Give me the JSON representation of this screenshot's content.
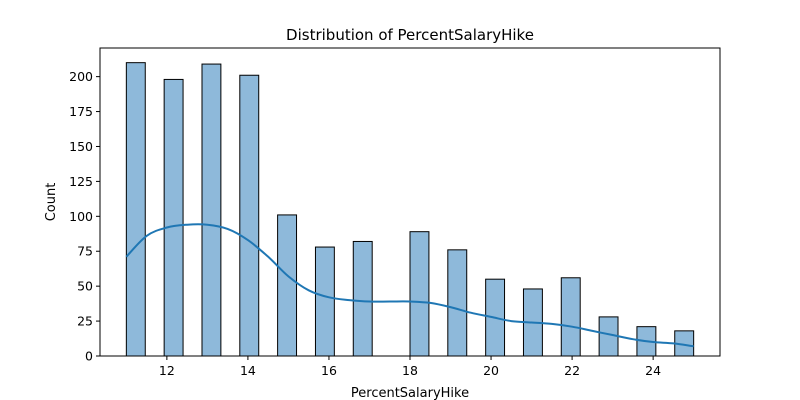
{
  "chart_data": {
    "type": "bar",
    "title": "Distribution of PercentSalaryHike",
    "xlabel": "PercentSalaryHike",
    "ylabel": "Count",
    "xlim": [
      10.35,
      25.65
    ],
    "ylim": [
      0,
      220.5
    ],
    "xticks": [
      12,
      14,
      16,
      18,
      20,
      22,
      24
    ],
    "yticks": [
      0,
      25,
      50,
      75,
      100,
      125,
      150,
      175,
      200
    ],
    "bins": [
      {
        "x0": 11.0,
        "x1": 11.467,
        "count": 210
      },
      {
        "x0": 11.933,
        "x1": 12.4,
        "count": 198
      },
      {
        "x0": 12.867,
        "x1": 13.333,
        "count": 209
      },
      {
        "x0": 13.8,
        "x1": 14.267,
        "count": 201
      },
      {
        "x0": 14.733,
        "x1": 15.2,
        "count": 101
      },
      {
        "x0": 15.667,
        "x1": 16.133,
        "count": 78
      },
      {
        "x0": 16.6,
        "x1": 17.067,
        "count": 82
      },
      {
        "x0": 18.0,
        "x1": 18.467,
        "count": 89
      },
      {
        "x0": 18.933,
        "x1": 19.4,
        "count": 76
      },
      {
        "x0": 19.867,
        "x1": 20.333,
        "count": 55
      },
      {
        "x0": 20.8,
        "x1": 21.267,
        "count": 48
      },
      {
        "x0": 21.733,
        "x1": 22.2,
        "count": 56
      },
      {
        "x0": 22.667,
        "x1": 23.133,
        "count": 28
      },
      {
        "x0": 23.6,
        "x1": 24.067,
        "count": 21
      },
      {
        "x0": 24.533,
        "x1": 25.0,
        "count": 18
      }
    ],
    "kde": {
      "x": [
        11.0,
        11.5,
        12.0,
        12.5,
        13.0,
        13.5,
        14.0,
        14.5,
        15.0,
        15.5,
        16.0,
        16.5,
        17.0,
        17.5,
        18.0,
        18.5,
        19.0,
        19.5,
        20.0,
        20.5,
        21.0,
        21.5,
        22.0,
        22.5,
        23.0,
        23.5,
        24.0,
        24.5,
        25.0
      ],
      "y": [
        71,
        86,
        92,
        94,
        94,
        91,
        83,
        71,
        57,
        47,
        42,
        40,
        39,
        39,
        39,
        38,
        35,
        31,
        28,
        25,
        24,
        23,
        21,
        18,
        15,
        12,
        10,
        9,
        7
      ]
    },
    "grid": false,
    "colors": {
      "bar_fill": "#8eb9da",
      "bar_edge": "#000000",
      "kde_line": "#1f77b4"
    }
  }
}
